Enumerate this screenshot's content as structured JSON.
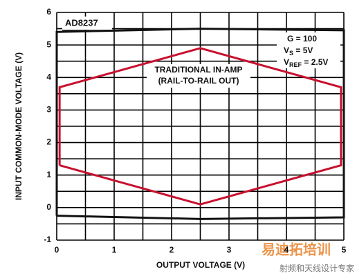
{
  "chart_data": {
    "type": "line",
    "x_label": "OUTPUT VOLTAGE (V)",
    "y_label": "INPUT COMMON-MODE VOLTAGE (V)",
    "xlim": [
      0,
      5
    ],
    "ylim": [
      -1,
      6
    ],
    "xticks": [
      0,
      1,
      2,
      3,
      4,
      5
    ],
    "yticks": [
      -1,
      0,
      1,
      2,
      3,
      4,
      5,
      6
    ],
    "grid_x": [
      0,
      0.5,
      1,
      1.5,
      2,
      2.5,
      3,
      3.5,
      4,
      4.5,
      5
    ],
    "grid_y": [
      -1,
      -0.5,
      0,
      0.5,
      1,
      1.5,
      2,
      2.5,
      3,
      3.5,
      4,
      4.5,
      5,
      5.5,
      6
    ],
    "series": [
      {
        "name": "AD8237",
        "color": "#111111",
        "x": [
          0,
          0,
          2.5,
          5,
          5,
          2.5,
          0
        ],
        "values": [
          -0.25,
          5.4,
          5.5,
          5.45,
          -0.3,
          -0.35,
          -0.25
        ]
      },
      {
        "name": "TRADITIONAL IN-AMP",
        "color": "#c8102e",
        "x": [
          0.05,
          0.05,
          2.5,
          4.95,
          4.95,
          2.5,
          0.05
        ],
        "values": [
          1.3,
          3.7,
          4.9,
          3.7,
          1.3,
          0.1,
          1.3
        ]
      }
    ],
    "annotations": {
      "note": "(RAIL-TO-RAIL OUT)",
      "gain": "G = 100",
      "vs": {
        "main": "V",
        "sub": "S",
        "rest": " = 5V"
      },
      "vref": {
        "main": "V",
        "sub": "REF",
        "rest": " = 2.5V"
      }
    },
    "watermark": {
      "brand": "易迪拓培训",
      "slogan": "射频和天线设计专家"
    }
  }
}
